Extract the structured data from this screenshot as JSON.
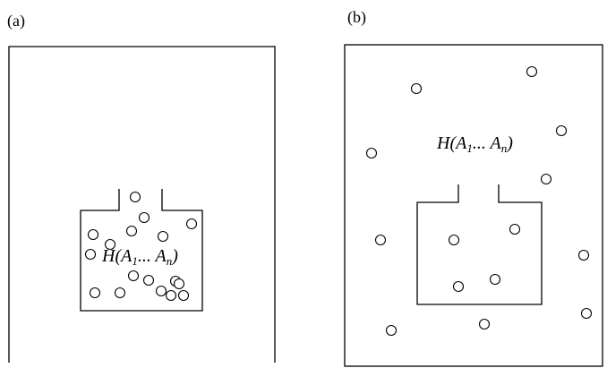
{
  "panels": [
    {
      "id": "a",
      "label": "(a)",
      "formula": {
        "prefix": "H(A",
        "sub1": "1",
        "middle": "... A",
        "sub2": "n",
        "suffix": ")"
      }
    },
    {
      "id": "b",
      "label": "(b)",
      "formula": {
        "prefix": "H(A",
        "sub1": "1",
        "middle": "... A",
        "sub2": "n",
        "suffix": ")"
      }
    }
  ],
  "particle_counts": {
    "a": 17,
    "b": 14
  }
}
